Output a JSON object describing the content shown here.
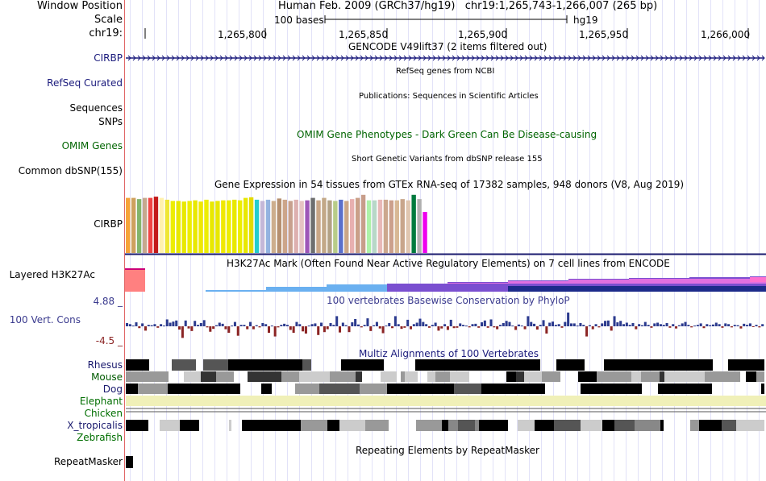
{
  "header": {
    "window_position_label": "Window Position",
    "scale_label": "Scale",
    "chrom_label": "chr19:",
    "title": "Human Feb. 2009 (GRCh37/hg19)   chr19:1,265,743-1,266,007 (265 bp)",
    "scale_value": "100 bases",
    "assembly": "hg19",
    "ticks": [
      "1,265,800",
      "1,265,850",
      "1,265,900",
      "1,265,950",
      "1,266,000"
    ]
  },
  "tracks": {
    "gencode": {
      "title": "GENCODE V49lift37 (2 items filtered out)",
      "item": "CIRBP"
    },
    "refseq": {
      "label": "RefSeq Curated",
      "title": "RefSeq genes from NCBI"
    },
    "publications": {
      "title": "Publications: Sequences in Scientific Articles"
    },
    "sequences": {
      "label": "Sequences"
    },
    "snps": {
      "label": "SNPs"
    },
    "omim": {
      "label": "OMIM Genes",
      "title": "OMIM Gene Phenotypes - Dark Green Can Be Disease-causing"
    },
    "dbsnp": {
      "label": "Common dbSNP(155)",
      "title": "Short Genetic Variants from dbSNP release 155"
    },
    "gtex": {
      "label": "CIRBP",
      "title": "Gene Expression in 54 tissues from GTEx RNA-seq of 17382 samples, 948 donors (V8, Aug 2019)",
      "levels": [
        0.9,
        0.9,
        0.88,
        0.9,
        0.9,
        0.92,
        0.9,
        0.87,
        0.85,
        0.85,
        0.84,
        0.85,
        0.86,
        0.84,
        0.87,
        0.84,
        0.85,
        0.86,
        0.86,
        0.87,
        0.86,
        0.9,
        0.91,
        0.87,
        0.85,
        0.87,
        0.85,
        0.89,
        0.87,
        0.85,
        0.87,
        0.85,
        0.86,
        0.9,
        0.86,
        0.9,
        0.86,
        0.85,
        0.87,
        0.85,
        0.88,
        0.9,
        0.95,
        0.86,
        0.86,
        0.87,
        0.87,
        0.86,
        0.86,
        0.88,
        0.86,
        0.95,
        0.88,
        0.67
      ],
      "colors": [
        "#f6a338",
        "#cfa15e",
        "#83b46b",
        "#c6a88e",
        "#f04545",
        "#c31a1a",
        "#fff1ad",
        "#efe634",
        "#eded00",
        "#e8e800",
        "#e8e800",
        "#eded00",
        "#e8e800",
        "#f0e800",
        "#eded00",
        "#e8e800",
        "#e8e800",
        "#f0e800",
        "#eded00",
        "#e8e800",
        "#eded00",
        "#e8e800",
        "#e3da00",
        "#24cccc",
        "#c4b8d8",
        "#94b3e0",
        "#cdae8d",
        "#b58f6f",
        "#cca58a",
        "#c7a08e",
        "#ddb0b0",
        "#e6c3c3",
        "#9e56b8",
        "#6d6e6f",
        "#c8a687",
        "#c2a887",
        "#b2a185",
        "#b8cc88",
        "#5a6fcc",
        "#caa688",
        "#e8b0b0",
        "#caa088",
        "#c79d8a",
        "#adf2a8",
        "#b8d8c8",
        "#e8b8b8",
        "#cca78e",
        "#cca08c",
        "#d8b895",
        "#c8a58b",
        "#e0c6b0",
        "#007a3d",
        "#b0b0b0",
        "#ee00ee"
      ]
    },
    "h3k27ac": {
      "label": "Layered H3K27Ac",
      "title": "H3K27Ac Mark (Often Found Near Active Regulatory Elements) on 7 cell lines from ENCODE"
    },
    "phylop": {
      "label": "100 Vert. Cons",
      "max": "4.88 _",
      "min": "-4.5 _",
      "title": "100 vertebrates Basewise Conservation by PhyloP",
      "values": [
        0.45,
        0.3,
        0.1,
        0.55,
        -0.25,
        0.4,
        -0.6,
        0.2,
        0.15,
        0.3,
        -0.2,
        0.3,
        0.1,
        0.95,
        0.5,
        0.65,
        0.8,
        -0.45,
        -1.6,
        0.8,
        -0.3,
        -0.65,
        0.75,
        0.2,
        0.45,
        0.85,
        -0.15,
        -0.75,
        -0.35,
        0.15,
        0.5,
        0.35,
        -0.4,
        -0.9,
        0.1,
        0.6,
        -1.3,
        0.2,
        0.2,
        -0.4,
        0.6,
        -0.4,
        0.15,
        -0.15,
        0.45,
        0.3,
        -0.9,
        0.1,
        -1.4,
        -0.15,
        0.2,
        0.35,
        0.2,
        -0.5,
        -0.9,
        0.6,
        0.3,
        -0.7,
        -1.0,
        0.1,
        0.3,
        0.4,
        -1.2,
        0.5,
        -0.8,
        -0.4,
        0.45,
        0.2,
        1.4,
        -0.85,
        0.5,
        0.15,
        -0.8,
        0.55,
        1.0,
        0.25,
        -0.15,
        0.2,
        1.1,
        -0.65,
        0.15,
        0.6,
        -0.3,
        -0.95,
        0.1,
        0.45,
        -0.25,
        1.4,
        0.3,
        -0.35,
        -0.2,
        0.9,
        -0.4,
        0.3,
        0.5,
        1.05,
        0.6,
        0.3,
        -0.2,
        0.2,
        0.5,
        -0.6,
        -0.3,
        0.3,
        -0.5,
        0.9,
        -0.25,
        -0.2,
        0.4,
        0.2,
        0.1,
        -0.15,
        0.3,
        0.35,
        -0.2,
        0.55,
        0.8,
        -0.2,
        0.95,
        -0.15,
        -0.4,
        0.2,
        0.45,
        0.75,
        0.6,
        0.1,
        -0.5,
        0.25,
        0.1,
        -0.4,
        1.4,
        0.6,
        0.35,
        -0.45,
        0.2,
        0.85,
        -1.0,
        0.5,
        0.65,
        0.2,
        0.3,
        -0.2,
        0.6,
        1.9,
        0.4,
        0.4,
        0.1,
        0.45,
        0.2,
        -1.4,
        0.15,
        -0.4,
        0.3,
        -0.15,
        0.4,
        0.75,
        0.8,
        -0.6,
        1.4,
        0.55,
        0.75,
        0.3,
        0.5,
        0.2,
        0.45,
        -0.4,
        0.3,
        0.15,
        0.6,
        0.2,
        -0.2,
        0.4,
        0.5,
        0.3,
        0.2,
        0.45,
        -0.2,
        0.3,
        -0.3,
        0.15,
        0.4,
        0.6,
        0.2,
        -0.15,
        0.1,
        0.2,
        0.4,
        -0.25,
        0.3,
        0.15,
        0.25,
        0.5,
        0.3,
        -0.2,
        0.4,
        0.3,
        -0.15,
        0.2,
        0.15,
        -0.3,
        0.35,
        0.2,
        0.4,
        -0.1,
        0.2,
        -0.15,
        0.3
      ]
    },
    "multiz": {
      "title": "Multiz Alignments of 100 Vertebrates",
      "species": [
        {
          "name": "Rhesus",
          "color": "#1a1a6e"
        },
        {
          "name": "Mouse",
          "color": "#005a00"
        },
        {
          "name": "Dog",
          "color": "#1a1a6e"
        },
        {
          "name": "Elephant",
          "color": "#006e00"
        },
        {
          "name": "Chicken",
          "color": "#006e00"
        },
        {
          "name": "X_tropicalis",
          "color": "#1a1a6e"
        },
        {
          "name": "Zebrafish",
          "color": "#006e00"
        }
      ]
    },
    "repeatmasker": {
      "label": "RepeatMasker",
      "title": "Repeating Elements by RepeatMasker"
    }
  },
  "colors": {
    "navy": "#1a1a7c",
    "green": "#006400",
    "phylop_pos": "#2b3a8e",
    "phylop_neg": "#8b2424",
    "guide_line": "#e2e2f8",
    "divider": "#e06666",
    "elephant_fill": "#f0f0b8"
  }
}
